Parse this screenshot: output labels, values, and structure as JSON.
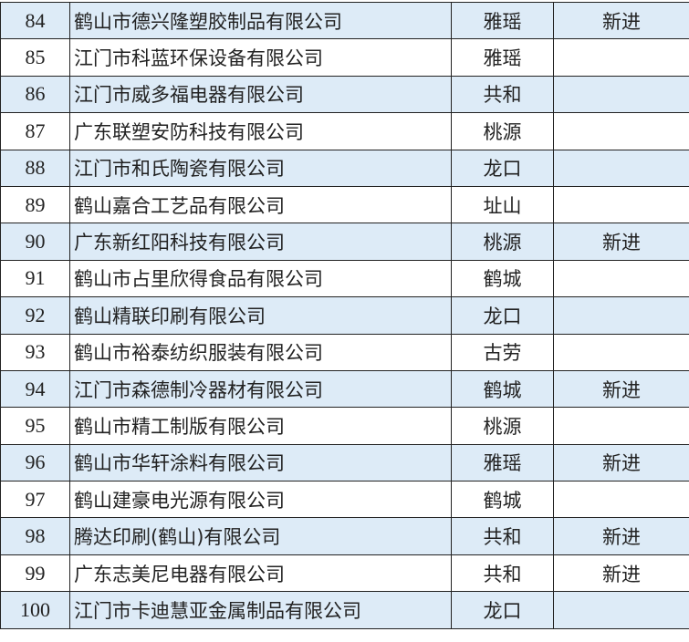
{
  "rows": [
    {
      "no": "84",
      "name": "鹤山市德兴隆塑胶制品有限公司",
      "town": "雅瑶",
      "note": "新进"
    },
    {
      "no": "85",
      "name": "江门市科蓝环保设备有限公司",
      "town": "雅瑶",
      "note": ""
    },
    {
      "no": "86",
      "name": "江门市威多福电器有限公司",
      "town": "共和",
      "note": ""
    },
    {
      "no": "87",
      "name": "广东联塑安防科技有限公司",
      "town": "桃源",
      "note": ""
    },
    {
      "no": "88",
      "name": "江门市和氏陶瓷有限公司",
      "town": "龙口",
      "note": ""
    },
    {
      "no": "89",
      "name": "鹤山嘉合工艺品有限公司",
      "town": "址山",
      "note": ""
    },
    {
      "no": "90",
      "name": "广东新红阳科技有限公司",
      "town": "桃源",
      "note": "新进"
    },
    {
      "no": "91",
      "name": "鹤山市占里欣得食品有限公司",
      "town": "鹤城",
      "note": ""
    },
    {
      "no": "92",
      "name": "鹤山精联印刷有限公司",
      "town": "龙口",
      "note": ""
    },
    {
      "no": "93",
      "name": "鹤山市裕泰纺织服装有限公司",
      "town": "古劳",
      "note": ""
    },
    {
      "no": "94",
      "name": "江门市森德制冷器材有限公司",
      "town": "鹤城",
      "note": "新进"
    },
    {
      "no": "95",
      "name": "鹤山市精工制版有限公司",
      "town": "桃源",
      "note": ""
    },
    {
      "no": "96",
      "name": "鹤山市华轩涂料有限公司",
      "town": "雅瑶",
      "note": "新进"
    },
    {
      "no": "97",
      "name": "鹤山建豪电光源有限公司",
      "town": "鹤城",
      "note": ""
    },
    {
      "no": "98",
      "name": "腾达印刷(鹤山)有限公司",
      "town": "共和",
      "note": "新进"
    },
    {
      "no": "99",
      "name": "广东志美尼电器有限公司",
      "town": "共和",
      "note": "新进"
    },
    {
      "no": "100",
      "name": "江门市卡迪慧亚金属制品有限公司",
      "town": "龙口",
      "note": ""
    }
  ],
  "colors": {
    "shade": "#ddebf7",
    "border": "#222222"
  }
}
